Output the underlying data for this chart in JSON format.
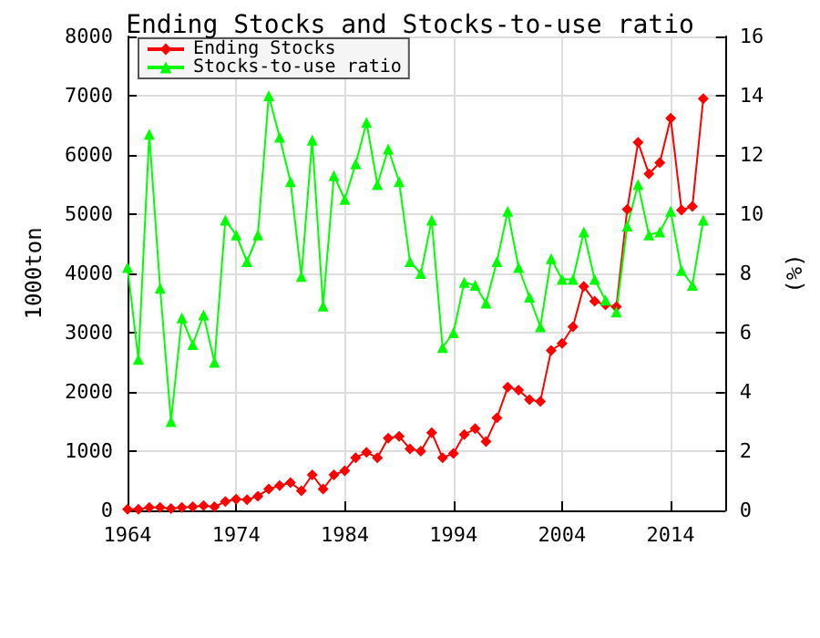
{
  "chart_data": {
    "type": "line",
    "title": "Ending Stocks and Stocks-to-use ratio",
    "ylabel": "1000ton",
    "y2label": "(%)",
    "x": [
      1964,
      1965,
      1966,
      1967,
      1968,
      1969,
      1970,
      1971,
      1972,
      1973,
      1974,
      1975,
      1976,
      1977,
      1978,
      1979,
      1980,
      1981,
      1982,
      1983,
      1984,
      1985,
      1986,
      1987,
      1988,
      1989,
      1990,
      1991,
      1992,
      1993,
      1994,
      1995,
      1996,
      1997,
      1998,
      1999,
      2000,
      2001,
      2002,
      2003,
      2004,
      2005,
      2006,
      2007,
      2008,
      2009,
      2010,
      2011,
      2012,
      2013,
      2014,
      2015,
      2016,
      2017
    ],
    "series": [
      {
        "name": "Ending Stocks",
        "color": "#ff0000",
        "marker": "diamond",
        "values": [
          20,
          20,
          50,
          50,
          30,
          50,
          60,
          80,
          60,
          150,
          190,
          180,
          240,
          360,
          420,
          470,
          330,
          600,
          360,
          600,
          670,
          890,
          980,
          890,
          1220,
          1250,
          1040,
          1000,
          1310,
          890,
          960,
          1280,
          1380,
          1160,
          1560,
          2080,
          2030,
          1870,
          1840,
          2700,
          2820,
          3100,
          3780,
          3530,
          3470,
          3440,
          5080,
          6210,
          5680,
          5870,
          6620,
          5070,
          5130,
          6950
        ]
      },
      {
        "name": "Stocks-to-use ratio",
        "color": "#00ff00",
        "marker": "triangle",
        "axis": "y2",
        "values": [
          8.2,
          5.1,
          12.7,
          7.5,
          3.0,
          6.5,
          5.6,
          6.6,
          5.0,
          9.8,
          9.3,
          8.4,
          9.3,
          14.0,
          12.6,
          11.1,
          7.9,
          12.5,
          6.9,
          11.3,
          10.5,
          11.7,
          13.1,
          11.0,
          12.2,
          11.1,
          8.4,
          8.0,
          9.8,
          5.5,
          6.0,
          7.7,
          7.6,
          7.0,
          8.4,
          10.1,
          8.2,
          7.2,
          6.2,
          8.5,
          7.8,
          7.8,
          9.4,
          7.8,
          7.1,
          6.7,
          9.6,
          11.0,
          9.3,
          9.4,
          10.1,
          8.1,
          7.6,
          9.8
        ]
      }
    ],
    "xlim": [
      1964,
      2019
    ],
    "xticks": [
      1964,
      1974,
      1984,
      1994,
      2004,
      2014
    ],
    "ylim": [
      0,
      8000
    ],
    "yticks": [
      0,
      1000,
      2000,
      3000,
      4000,
      5000,
      6000,
      7000,
      8000
    ],
    "y2lim": [
      0,
      16
    ],
    "y2ticks": [
      0,
      2,
      4,
      6,
      8,
      10,
      12,
      14,
      16
    ],
    "grid": true,
    "legend": "top left"
  }
}
